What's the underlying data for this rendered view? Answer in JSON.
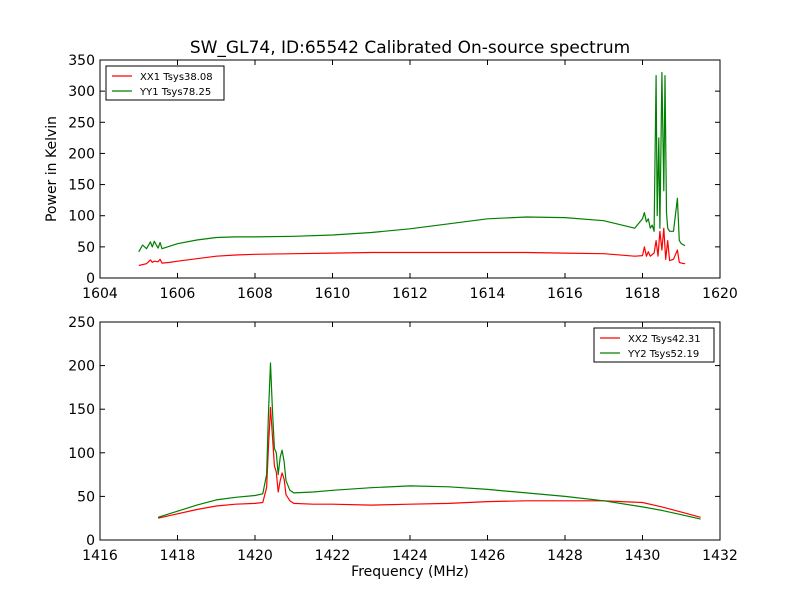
{
  "figure": {
    "title": "SW_GL74, ID:65542 Calibrated On-source spectrum"
  },
  "chart_data": [
    {
      "type": "line",
      "title": "SW_GL74, ID:65542 Calibrated On-source spectrum",
      "xlabel": "",
      "ylabel": "Power in Kelvin",
      "xlim": [
        1604,
        1620
      ],
      "ylim": [
        0,
        350
      ],
      "xticks": [
        1604,
        1606,
        1608,
        1610,
        1612,
        1614,
        1616,
        1618,
        1620
      ],
      "yticks": [
        0,
        50,
        100,
        150,
        200,
        250,
        300,
        350
      ],
      "legend_position": "top-left",
      "series": [
        {
          "name": "XX1 Tsys38.08",
          "color": "#ff0000",
          "x": [
            1605.0,
            1605.2,
            1605.3,
            1605.35,
            1605.4,
            1605.5,
            1605.55,
            1605.6,
            1605.8,
            1606.0,
            1606.5,
            1607.0,
            1607.5,
            1608.0,
            1609.0,
            1610.0,
            1611.0,
            1612.0,
            1613.0,
            1614.0,
            1615.0,
            1616.0,
            1617.0,
            1617.8,
            1618.0,
            1618.05,
            1618.1,
            1618.15,
            1618.2,
            1618.3,
            1618.35,
            1618.4,
            1618.45,
            1618.5,
            1618.55,
            1618.6,
            1618.65,
            1618.7,
            1618.8,
            1618.9,
            1618.95,
            1619.0,
            1619.1
          ],
          "y": [
            20,
            23,
            29,
            25,
            27,
            26,
            30,
            24,
            25,
            27,
            31,
            35,
            37,
            38,
            39,
            40,
            41,
            41,
            41,
            41,
            41,
            40,
            39,
            35,
            36,
            50,
            35,
            42,
            35,
            40,
            60,
            35,
            75,
            45,
            80,
            30,
            60,
            28,
            30,
            45,
            25,
            24,
            23
          ]
        },
        {
          "name": "YY1 Tsys78.25",
          "color": "#008000",
          "x": [
            1605.0,
            1605.1,
            1605.2,
            1605.3,
            1605.35,
            1605.4,
            1605.5,
            1605.55,
            1605.6,
            1605.8,
            1606.0,
            1606.5,
            1607.0,
            1607.5,
            1608.0,
            1609.0,
            1610.0,
            1611.0,
            1612.0,
            1613.0,
            1614.0,
            1615.0,
            1616.0,
            1617.0,
            1617.8,
            1618.0,
            1618.05,
            1618.1,
            1618.15,
            1618.2,
            1618.25,
            1618.3,
            1618.35,
            1618.38,
            1618.42,
            1618.45,
            1618.5,
            1618.55,
            1618.58,
            1618.62,
            1618.65,
            1618.7,
            1618.8,
            1618.9,
            1618.95,
            1619.0,
            1619.1
          ],
          "y": [
            42,
            53,
            47,
            58,
            50,
            59,
            48,
            57,
            47,
            51,
            55,
            61,
            65,
            66,
            66,
            67,
            69,
            73,
            79,
            87,
            95,
            98,
            97,
            92,
            80,
            95,
            105,
            90,
            95,
            80,
            85,
            75,
            325,
            100,
            225,
            80,
            330,
            140,
            325,
            105,
            80,
            75,
            75,
            128,
            60,
            55,
            52
          ]
        }
      ]
    },
    {
      "type": "line",
      "title": "",
      "xlabel": "Frequency (MHz)",
      "ylabel": "",
      "xlim": [
        1416,
        1432
      ],
      "ylim": [
        0,
        250
      ],
      "xticks": [
        1416,
        1418,
        1420,
        1422,
        1424,
        1426,
        1428,
        1430,
        1432
      ],
      "yticks": [
        0,
        50,
        100,
        150,
        200,
        250
      ],
      "legend_position": "top-right",
      "series": [
        {
          "name": "XX2 Tsys42.31",
          "color": "#ff0000",
          "x": [
            1417.5,
            1418.0,
            1418.5,
            1419.0,
            1419.5,
            1420.0,
            1420.2,
            1420.3,
            1420.35,
            1420.4,
            1420.45,
            1420.5,
            1420.55,
            1420.6,
            1420.65,
            1420.7,
            1420.75,
            1420.8,
            1420.9,
            1421.0,
            1421.5,
            1422.0,
            1423.0,
            1424.0,
            1425.0,
            1426.0,
            1427.0,
            1428.0,
            1429.0,
            1430.0,
            1430.5,
            1431.0,
            1431.5
          ],
          "y": [
            25,
            30,
            35,
            39,
            41,
            42,
            43,
            60,
            110,
            152,
            120,
            85,
            78,
            55,
            68,
            77,
            70,
            52,
            45,
            42,
            41,
            41,
            40,
            41,
            42,
            44,
            45,
            45,
            45,
            43,
            38,
            32,
            26
          ]
        },
        {
          "name": "YY2 Tsys52.19",
          "color": "#008000",
          "x": [
            1417.5,
            1418.0,
            1418.5,
            1419.0,
            1419.5,
            1420.0,
            1420.2,
            1420.3,
            1420.35,
            1420.4,
            1420.45,
            1420.5,
            1420.55,
            1420.6,
            1420.65,
            1420.7,
            1420.75,
            1420.8,
            1420.9,
            1421.0,
            1421.5,
            1422.0,
            1423.0,
            1424.0,
            1425.0,
            1426.0,
            1427.0,
            1428.0,
            1429.0,
            1430.0,
            1430.5,
            1431.0,
            1431.5
          ],
          "y": [
            26,
            33,
            40,
            46,
            49,
            51,
            53,
            75,
            150,
            203,
            150,
            105,
            100,
            75,
            95,
            103,
            90,
            68,
            57,
            54,
            55,
            57,
            60,
            62,
            61,
            58,
            54,
            50,
            45,
            38,
            34,
            29,
            24
          ]
        }
      ]
    }
  ]
}
